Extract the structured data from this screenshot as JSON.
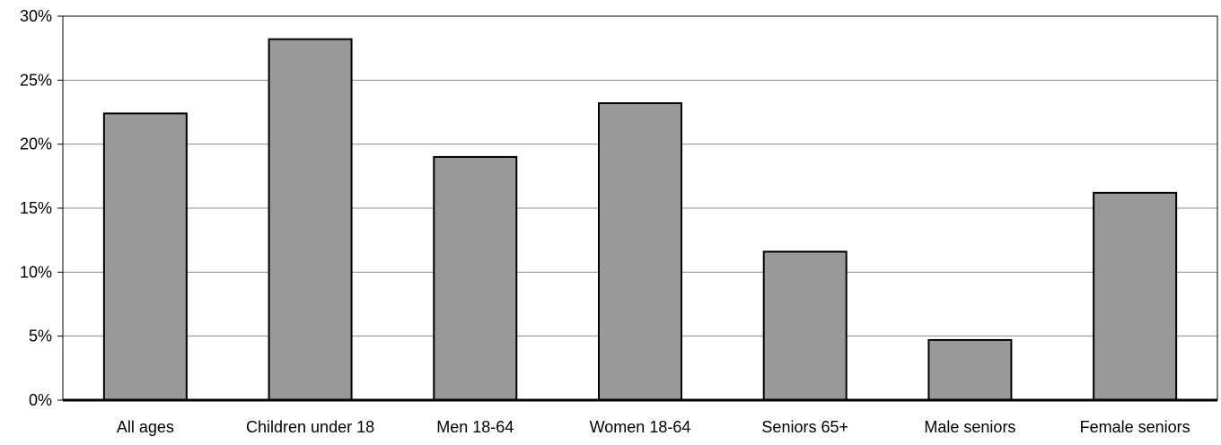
{
  "chart_data": {
    "type": "bar",
    "title": "",
    "xlabel": "",
    "ylabel": "",
    "categories": [
      "All ages",
      "Children under 18",
      "Men 18-64",
      "Women 18-64",
      "Seniors 65+",
      "Male seniors",
      "Female seniors"
    ],
    "values": [
      22.4,
      28.2,
      19.0,
      23.2,
      11.6,
      4.7,
      16.2
    ],
    "ylim": [
      0,
      30
    ],
    "yticks": [
      0,
      5,
      10,
      15,
      20,
      25,
      30
    ],
    "ytick_labels": [
      "0%",
      "5%",
      "10%",
      "15%",
      "20%",
      "25%",
      "30%"
    ],
    "grid": true,
    "legend": "none",
    "colors": {
      "bar_fill": "#999999",
      "bar_stroke": "#000000",
      "grid": "#8c8c8c"
    }
  }
}
